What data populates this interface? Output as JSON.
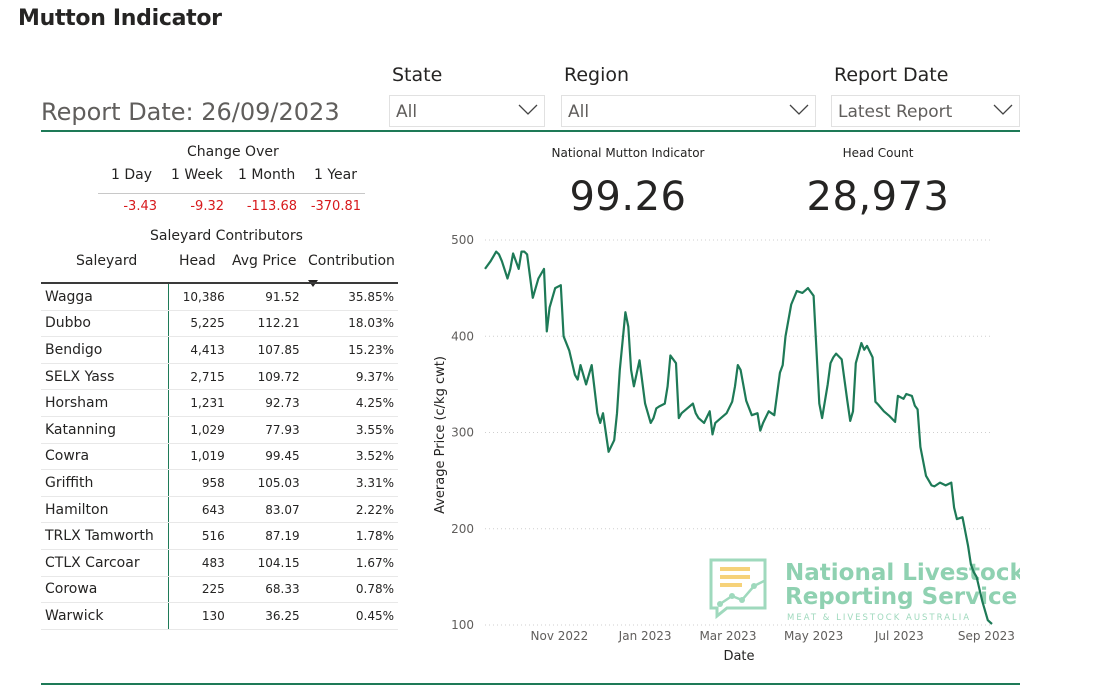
{
  "title": "Mutton Indicator",
  "report_date_text": "Report Date: 26/09/2023",
  "slicers": [
    {
      "label": "State",
      "value": "All"
    },
    {
      "label": "Region",
      "value": "All"
    },
    {
      "label": "Report Date",
      "value": "Latest Report"
    }
  ],
  "change_over": {
    "title": "Change Over",
    "headers": [
      "1 Day",
      "1 Week",
      "1 Month",
      "1 Year"
    ],
    "values": [
      "-3.43",
      "-9.32",
      "-113.68",
      "-370.81"
    ]
  },
  "kpis": {
    "indicator_label": "National Mutton Indicator",
    "indicator_value": "99.26",
    "head_label": "Head Count",
    "head_value": "28,973"
  },
  "saleyards": {
    "title": "Saleyard Contributors",
    "headers": [
      "Saleyard",
      "Head",
      "Avg Price",
      "Contribution"
    ],
    "rows": [
      [
        "Wagga",
        "10,386",
        "91.52",
        "35.85%"
      ],
      [
        "Dubbo",
        "5,225",
        "112.21",
        "18.03%"
      ],
      [
        "Bendigo",
        "4,413",
        "107.85",
        "15.23%"
      ],
      [
        "SELX Yass",
        "2,715",
        "109.72",
        "9.37%"
      ],
      [
        "Horsham",
        "1,231",
        "92.73",
        "4.25%"
      ],
      [
        "Katanning",
        "1,029",
        "77.93",
        "3.55%"
      ],
      [
        "Cowra",
        "1,019",
        "99.45",
        "3.52%"
      ],
      [
        "Griffith",
        "958",
        "105.03",
        "3.31%"
      ],
      [
        "Hamilton",
        "643",
        "83.07",
        "2.22%"
      ],
      [
        "TRLX Tamworth",
        "516",
        "87.19",
        "1.78%"
      ],
      [
        "CTLX Carcoar",
        "483",
        "104.15",
        "1.67%"
      ],
      [
        "Corowa",
        "225",
        "68.33",
        "0.78%"
      ],
      [
        "Warwick",
        "130",
        "36.25",
        "0.45%"
      ]
    ]
  },
  "watermark": {
    "line1": "National Livestock",
    "line2": "Reporting Service",
    "line3": "MEAT & LIVESTOCK AUSTRALIA"
  },
  "colors": {
    "accent": "#1e7a57",
    "negative": "#d7191c",
    "watermark": "#7fcba6"
  },
  "chart_data": {
    "type": "line",
    "title": "",
    "xlabel": "Date",
    "ylabel": "Average Price (c/kg cwt)",
    "ylim": [
      100,
      500
    ],
    "yticks": [
      100,
      200,
      300,
      400,
      500
    ],
    "xlim": [
      0,
      361
    ],
    "xticks": [
      {
        "label": "Nov 2022",
        "x": 53
      },
      {
        "label": "Jan 2023",
        "x": 114
      },
      {
        "label": "Mar 2023",
        "x": 173
      },
      {
        "label": "May 2023",
        "x": 234
      },
      {
        "label": "Jul 2023",
        "x": 295
      },
      {
        "label": "Sep 2023",
        "x": 357
      }
    ],
    "series": [
      {
        "name": "National Mutton Indicator",
        "x": [
          0,
          4,
          8,
          10,
          12,
          16,
          18,
          20,
          24,
          26,
          28,
          30,
          34,
          38,
          42,
          44,
          46,
          50,
          54,
          56,
          60,
          64,
          66,
          68,
          72,
          76,
          80,
          82,
          84,
          88,
          92,
          94,
          96,
          100,
          102,
          104,
          106,
          110,
          114,
          118,
          120,
          122,
          124,
          128,
          130,
          132,
          136,
          138,
          140,
          144,
          148,
          150,
          152,
          156,
          160,
          162,
          164,
          168,
          172,
          176,
          178,
          180,
          182,
          186,
          190,
          194,
          196,
          198,
          202,
          206,
          210,
          212,
          214,
          218,
          222,
          226,
          230,
          232,
          234,
          238,
          240,
          244,
          246,
          248,
          250,
          254,
          258,
          260,
          262,
          264,
          268,
          270,
          272,
          276,
          278,
          280,
          284,
          288,
          292,
          294,
          298,
          300,
          304,
          306,
          308,
          310,
          314,
          316,
          318,
          320,
          324,
          328,
          332,
          334,
          336,
          340,
          344,
          346,
          348,
          350,
          354,
          358,
          361
        ],
        "y": [
          470,
          478,
          488,
          485,
          478,
          460,
          470,
          486,
          470,
          488,
          488,
          485,
          440,
          460,
          470,
          405,
          430,
          450,
          453,
          400,
          385,
          360,
          355,
          370,
          350,
          370,
          320,
          310,
          320,
          280,
          292,
          320,
          365,
          425,
          410,
          365,
          348,
          375,
          330,
          310,
          315,
          325,
          327,
          330,
          348,
          380,
          372,
          315,
          320,
          325,
          330,
          320,
          315,
          310,
          322,
          298,
          310,
          315,
          320,
          332,
          348,
          370,
          365,
          333,
          318,
          320,
          302,
          310,
          322,
          318,
          362,
          370,
          400,
          433,
          447,
          445,
          450,
          446,
          442,
          330,
          315,
          350,
          372,
          378,
          382,
          376,
          333,
          312,
          322,
          372,
          393,
          386,
          390,
          378,
          332,
          329,
          322,
          317,
          311,
          338,
          335,
          340,
          338,
          328,
          324,
          285,
          255,
          250,
          245,
          244,
          248,
          245,
          248,
          222,
          210,
          212,
          182,
          163,
          155,
          150,
          125,
          105,
          101
        ]
      }
    ]
  }
}
